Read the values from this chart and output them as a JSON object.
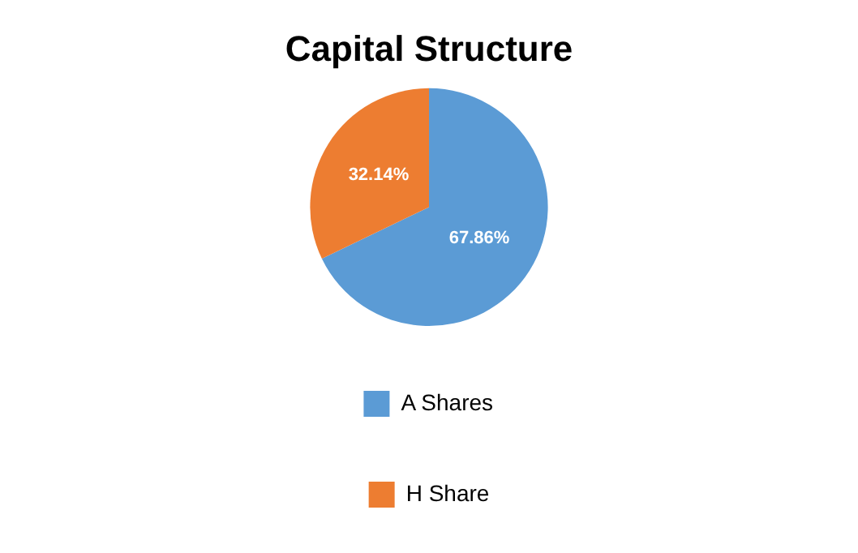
{
  "chart_data": {
    "type": "pie",
    "title": "Capital Structure",
    "categories": [
      "A Shares",
      "H Share"
    ],
    "values": [
      67.86,
      32.14
    ],
    "value_labels": [
      "67.86%",
      "32.14%"
    ],
    "colors": [
      "#5b9bd5",
      "#ed7d31"
    ],
    "legend": "bottom"
  }
}
